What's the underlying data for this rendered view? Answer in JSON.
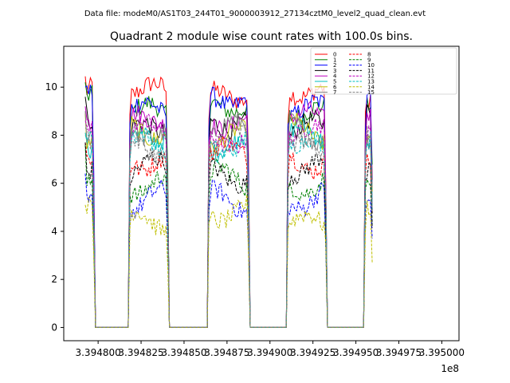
{
  "suptitle": "Data file: modeM0/AS1T03_244T01_9000003912_27134cztM0_level2_quad_clean.evt",
  "chart_data": {
    "type": "line",
    "title": "Quadrant 2 module wise count rates with 100.0s bins.",
    "xlabel": "",
    "ylabel": "",
    "x_offset_label": "1e8",
    "xlim": [
      339478000.0,
      339501000.0
    ],
    "ylim": [
      -0.55,
      11.7
    ],
    "x_ticks": [
      339480000.0,
      339482500.0,
      339485000.0,
      339487500.0,
      339490000.0,
      339492500.0,
      339495000.0,
      339497500.0,
      339500000.0
    ],
    "x_tick_labels": [
      "3.394800",
      "3.394825",
      "3.394850",
      "3.394875",
      "3.394900",
      "3.394925",
      "3.394950",
      "3.394975",
      "3.395000"
    ],
    "y_ticks": [
      0,
      2,
      4,
      6,
      8,
      10
    ],
    "y_tick_labels": [
      "0",
      "2",
      "4",
      "6",
      "8",
      "10"
    ],
    "legend_position": "top-right",
    "time_start": 339479250.0,
    "bin_seconds": 100,
    "segments": [
      {
        "start_bin": 0,
        "end_bin": 5
      },
      {
        "start_bin": 26,
        "end_bin": 48
      },
      {
        "start_bin": 72,
        "end_bin": 95
      },
      {
        "start_bin": 118,
        "end_bin": 140
      },
      {
        "start_bin": 163,
        "end_bin": 167
      }
    ],
    "total_bins": 168,
    "series": [
      {
        "name": "0",
        "color": "#ff0000",
        "dash": "solid",
        "level": 9.75,
        "first": 10.45
      },
      {
        "name": "1",
        "color": "#008000",
        "dash": "solid",
        "level": 9.1,
        "first": 10.2
      },
      {
        "name": "2",
        "color": "#0000ff",
        "dash": "solid",
        "level": 9.3,
        "first": 10.0
      },
      {
        "name": "3",
        "color": "#000000",
        "dash": "solid",
        "level": 8.4,
        "first": 9.6
      },
      {
        "name": "4",
        "color": "#bf00bf",
        "dash": "solid",
        "level": 8.6,
        "first": 9.2
      },
      {
        "name": "5",
        "color": "#00bfbf",
        "dash": "solid",
        "level": 7.8,
        "first": 8.0
      },
      {
        "name": "6",
        "color": "#bfbf00",
        "dash": "solid",
        "level": 8.0,
        "first": 8.9
      },
      {
        "name": "7",
        "color": "#808080",
        "dash": "solid",
        "level": 8.2,
        "first": 9.0
      },
      {
        "name": "8",
        "color": "#ff0000",
        "dash": "dashed",
        "level": 7.1,
        "first": 7.7
      },
      {
        "name": "9",
        "color": "#008000",
        "dash": "dashed",
        "level": 6.1,
        "first": 7.6
      },
      {
        "name": "10",
        "color": "#0000ff",
        "dash": "dashed",
        "level": 5.3,
        "first": 6.4
      },
      {
        "name": "11",
        "color": "#000000",
        "dash": "dashed",
        "level": 6.5,
        "first": 7.7
      },
      {
        "name": "12",
        "color": "#bf00bf",
        "dash": "dashed",
        "level": 8.0,
        "first": 8.6
      },
      {
        "name": "13",
        "color": "#00bfbf",
        "dash": "dashed",
        "level": 7.6,
        "first": 8.1
      },
      {
        "name": "14",
        "color": "#bfbf00",
        "dash": "dashed",
        "level": 4.6,
        "first": 5.1
      },
      {
        "name": "15",
        "color": "#808080",
        "dash": "dashed",
        "level": 7.7,
        "first": 8.3
      }
    ]
  }
}
